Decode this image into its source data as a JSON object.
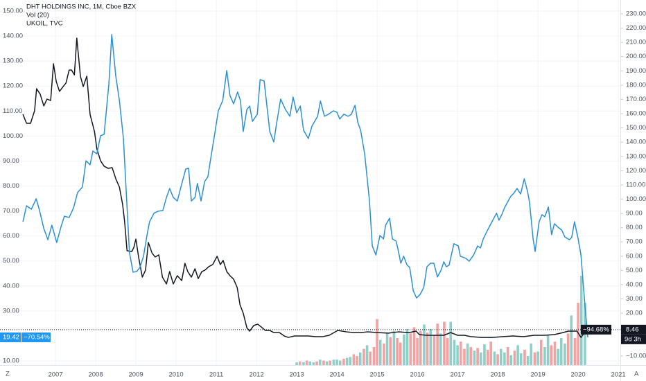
{
  "chart_data": {
    "type": "line",
    "xlim": [
      2005.62,
      2021.05
    ],
    "xticks": [
      2007,
      2008,
      2009,
      2010,
      2011,
      2012,
      2013,
      2014,
      2015,
      2016,
      2017,
      2018,
      2019,
      2020,
      2021
    ],
    "ylim": [
      8.33,
      154.44
    ],
    "yticks": [
      {
        "value": 150,
        "label": "150.00"
      },
      {
        "value": 140,
        "label": "140.00"
      },
      {
        "value": 130,
        "label": "130.00"
      },
      {
        "value": 120,
        "label": "120.00"
      },
      {
        "value": 110,
        "label": "110.00"
      },
      {
        "value": 100,
        "label": "100.00"
      },
      {
        "value": 90,
        "label": "90.00"
      },
      {
        "value": 80,
        "label": "80.00"
      },
      {
        "value": 70,
        "label": "70.00"
      },
      {
        "value": 60,
        "label": "60.00"
      },
      {
        "value": 50,
        "label": "50.00"
      },
      {
        "value": 40,
        "label": "40.00"
      },
      {
        "value": 30,
        "label": "30.00"
      },
      {
        "value": 10,
        "label": "10.00"
      }
    ],
    "y2lim": [
      -16.4,
      239.72
    ],
    "y2ticks": [
      {
        "value": 230,
        "label": "230.00"
      },
      {
        "value": 220,
        "label": "220.00"
      },
      {
        "value": 210,
        "label": "210.00"
      },
      {
        "value": 200,
        "label": "200.00"
      },
      {
        "value": 190,
        "label": "190.00"
      },
      {
        "value": 180,
        "label": "180.00"
      },
      {
        "value": 170,
        "label": "170.00"
      },
      {
        "value": 160,
        "label": "160.00"
      },
      {
        "value": 150,
        "label": "150.00"
      },
      {
        "value": 140,
        "label": "140.00"
      },
      {
        "value": 130,
        "label": "130.00"
      },
      {
        "value": 120,
        "label": "120.00"
      },
      {
        "value": 110,
        "label": "110.00"
      },
      {
        "value": 100,
        "label": "100.00"
      },
      {
        "value": 90,
        "label": "90.00"
      },
      {
        "value": 80,
        "label": "80.00"
      },
      {
        "value": 70,
        "label": "70.00"
      },
      {
        "value": 60,
        "label": "60.00"
      },
      {
        "value": 50,
        "label": "50.00"
      },
      {
        "value": 40,
        "label": "40.00"
      },
      {
        "value": 30,
        "label": "30.00"
      },
      {
        "value": 20,
        "label": "20.00"
      },
      {
        "value": -10,
        "label": "−10.00"
      }
    ],
    "grid": true,
    "series": [
      {
        "name": "DHT HOLDINGS INC, 1M, Cboe BZX",
        "color": "#131722",
        "axis": "y2",
        "x": [
          2006.19,
          2006.28,
          2006.38,
          2006.48,
          2006.53,
          2006.62,
          2006.71,
          2006.79,
          2006.88,
          2006.95,
          2007.02,
          2007.1,
          2007.19,
          2007.26,
          2007.34,
          2007.4,
          2007.47,
          2007.53,
          2007.62,
          2007.69,
          2007.78,
          2007.86,
          2007.97,
          2008.03,
          2008.12,
          2008.21,
          2008.31,
          2008.41,
          2008.5,
          2008.59,
          2008.67,
          2008.72,
          2008.78,
          2008.9,
          2008.95,
          2009.0,
          2009.07,
          2009.16,
          2009.24,
          2009.31,
          2009.4,
          2009.48,
          2009.57,
          2009.66,
          2009.76,
          2009.84,
          2009.93,
          2010.03,
          2010.14,
          2010.22,
          2010.29,
          2010.38,
          2010.47,
          2010.55,
          2010.64,
          2010.72,
          2010.81,
          2010.91,
          2011.02,
          2011.1,
          2011.17,
          2011.26,
          2011.34,
          2011.43,
          2011.52,
          2011.59,
          2011.67,
          2011.76,
          2011.83,
          2011.93,
          2012.03,
          2012.12,
          2012.22,
          2012.33,
          2012.43,
          2012.57,
          2012.69,
          2012.79,
          2012.95,
          2013.12,
          2013.29,
          2013.47,
          2013.64,
          2013.81,
          2014.02,
          2014.24,
          2014.41,
          2014.59,
          2014.76,
          2015.02,
          2015.28,
          2015.53,
          2015.79,
          2015.97,
          2016.05,
          2016.22,
          2016.48,
          2016.66,
          2016.83,
          2017.0,
          2017.17,
          2017.34,
          2017.6,
          2017.86,
          2018.12,
          2018.38,
          2018.64,
          2018.9,
          2019.16,
          2019.41,
          2019.62,
          2019.76,
          2019.86,
          2019.97,
          2020.07,
          2020.14,
          2020.24
        ],
        "values": [
          159.5,
          153.2,
          153.2,
          162.0,
          177.5,
          173.6,
          165.4,
          170.2,
          169.2,
          195.0,
          182.4,
          175.6,
          179.0,
          181.4,
          190.6,
          190.6,
          187.2,
          213.0,
          186.3,
          179.0,
          186.3,
          159.5,
          147.4,
          135.2,
          127.0,
          123.1,
          121.6,
          122.1,
          114.3,
          108.5,
          96.3,
          84.2,
          63.8,
          63.3,
          66.2,
          72.0,
          58.9,
          45.3,
          50.2,
          69.6,
          62.3,
          59.4,
          60.9,
          45.3,
          40.5,
          49.2,
          40.5,
          46.3,
          42.9,
          55.0,
          49.2,
          45.3,
          51.2,
          44.3,
          49.2,
          50.2,
          52.6,
          54.1,
          59.9,
          54.1,
          57.0,
          49.2,
          46.3,
          43.9,
          38.0,
          25.9,
          20.0,
          9.8,
          7.4,
          11.3,
          12.3,
          10.3,
          7.9,
          7.9,
          6.4,
          6.4,
          4.0,
          3.0,
          4.0,
          4.0,
          4.0,
          3.5,
          3.5,
          4.5,
          7.9,
          6.9,
          6.4,
          6.4,
          6.9,
          6.4,
          6.0,
          6.9,
          6.4,
          7.4,
          5.0,
          4.5,
          4.5,
          4.5,
          6.4,
          4.5,
          4.5,
          3.5,
          3.0,
          3.0,
          3.5,
          4.0,
          3.5,
          4.5,
          4.5,
          5.0,
          6.4,
          7.4,
          7.4,
          7.4,
          3.0,
          5.5,
          8.46
        ]
      },
      {
        "name": "UKOIL, TVC",
        "color": "#2a8fd6",
        "axis": "y",
        "x": [
          2006.19,
          2006.28,
          2006.4,
          2006.52,
          2006.6,
          2006.71,
          2006.81,
          2006.91,
          2007.03,
          2007.14,
          2007.22,
          2007.34,
          2007.45,
          2007.55,
          2007.67,
          2007.76,
          2007.86,
          2007.93,
          2008.03,
          2008.12,
          2008.21,
          2008.33,
          2008.4,
          2008.5,
          2008.59,
          2008.69,
          2008.79,
          2008.84,
          2008.93,
          2009.02,
          2009.1,
          2009.19,
          2009.28,
          2009.34,
          2009.45,
          2009.55,
          2009.67,
          2009.76,
          2009.84,
          2009.93,
          2010.03,
          2010.12,
          2010.24,
          2010.31,
          2010.38,
          2010.47,
          2010.53,
          2010.62,
          2010.71,
          2010.79,
          2010.88,
          2010.97,
          2011.05,
          2011.16,
          2011.26,
          2011.34,
          2011.43,
          2011.53,
          2011.6,
          2011.67,
          2011.76,
          2011.83,
          2011.9,
          2012.02,
          2012.09,
          2012.19,
          2012.33,
          2012.43,
          2012.5,
          2012.6,
          2012.72,
          2012.83,
          2012.91,
          2013.0,
          2013.09,
          2013.17,
          2013.29,
          2013.38,
          2013.52,
          2013.59,
          2013.69,
          2013.79,
          2013.91,
          2014.0,
          2014.07,
          2014.17,
          2014.28,
          2014.36,
          2014.45,
          2014.52,
          2014.59,
          2014.69,
          2014.81,
          2014.88,
          2014.97,
          2015.07,
          2015.16,
          2015.21,
          2015.31,
          2015.38,
          2015.47,
          2015.52,
          2015.59,
          2015.66,
          2015.74,
          2015.81,
          2015.9,
          2015.98,
          2016.07,
          2016.16,
          2016.24,
          2016.33,
          2016.41,
          2016.5,
          2016.59,
          2016.66,
          2016.72,
          2016.79,
          2016.91,
          2017.02,
          2017.07,
          2017.21,
          2017.29,
          2017.4,
          2017.5,
          2017.57,
          2017.64,
          2017.74,
          2017.84,
          2017.97,
          2018.03,
          2018.1,
          2018.17,
          2018.26,
          2018.33,
          2018.4,
          2018.48,
          2018.57,
          2018.66,
          2018.74,
          2018.79,
          2018.88,
          2018.93,
          2019.03,
          2019.1,
          2019.17,
          2019.26,
          2019.34,
          2019.41,
          2019.5,
          2019.59,
          2019.67,
          2019.78,
          2019.84,
          2019.91,
          2020.0,
          2020.07,
          2020.14,
          2020.19,
          2020.24
        ],
        "values": [
          65.7,
          72.1,
          70.7,
          74.9,
          70.4,
          63.0,
          58.5,
          64.3,
          57.4,
          63.8,
          67.9,
          67.4,
          71.3,
          77.4,
          79.6,
          90.1,
          88.5,
          94.0,
          92.9,
          100.1,
          100.7,
          121.2,
          140.6,
          123.9,
          114.2,
          99.0,
          68.5,
          53.3,
          45.5,
          45.8,
          47.4,
          51.9,
          60.7,
          65.7,
          69.1,
          69.9,
          70.2,
          75.4,
          79.0,
          75.4,
          74.0,
          79.6,
          86.8,
          87.1,
          74.0,
          75.4,
          81.0,
          74.0,
          81.8,
          83.7,
          92.9,
          101.8,
          110.1,
          114.2,
          126.2,
          116.2,
          112.9,
          117.6,
          114.2,
          101.8,
          110.6,
          112.0,
          105.9,
          108.7,
          122.6,
          122.0,
          101.8,
          97.6,
          105.1,
          114.8,
          110.6,
          107.9,
          115.6,
          109.3,
          112.0,
          102.3,
          99.0,
          104.0,
          107.9,
          114.0,
          107.9,
          108.7,
          110.1,
          109.5,
          106.8,
          108.7,
          107.9,
          108.7,
          112.3,
          105.4,
          102.3,
          92.9,
          74.0,
          56.0,
          52.4,
          60.2,
          58.8,
          64.3,
          67.1,
          58.8,
          58.0,
          54.6,
          49.1,
          51.9,
          48.5,
          47.4,
          38.0,
          35.2,
          36.6,
          39.4,
          47.7,
          49.1,
          49.1,
          43.6,
          46.3,
          49.7,
          47.7,
          48.3,
          56.9,
          56.0,
          51.9,
          51.0,
          49.9,
          52.4,
          56.0,
          55.2,
          58.8,
          62.1,
          65.2,
          69.1,
          66.3,
          68.5,
          71.3,
          74.0,
          76.0,
          77.1,
          79.0,
          76.8,
          82.9,
          77.9,
          73.5,
          58.8,
          53.8,
          65.7,
          68.5,
          67.7,
          71.6,
          60.5,
          64.9,
          63.5,
          62.4,
          59.6,
          58.5,
          59.4,
          65.7,
          58.8,
          52.4,
          38.0,
          28.3,
          19.42
        ]
      }
    ],
    "volume": {
      "type": "bar",
      "name": "Vol (20)",
      "vlim": [
        0,
        405
      ],
      "up_color": "#8ed0c8",
      "down_color": "#f4a1a1",
      "x": [
        2013.0,
        2013.08,
        2013.17,
        2013.25,
        2013.33,
        2013.42,
        2013.5,
        2013.58,
        2013.67,
        2013.75,
        2013.83,
        2013.92,
        2014.0,
        2014.08,
        2014.17,
        2014.25,
        2014.33,
        2014.42,
        2014.5,
        2014.58,
        2014.67,
        2014.75,
        2014.83,
        2014.92,
        2015.0,
        2015.08,
        2015.17,
        2015.25,
        2015.33,
        2015.42,
        2015.5,
        2015.58,
        2015.67,
        2015.75,
        2015.83,
        2015.92,
        2016.0,
        2016.08,
        2016.17,
        2016.25,
        2016.33,
        2016.42,
        2016.5,
        2016.58,
        2016.67,
        2016.75,
        2016.83,
        2016.92,
        2017.0,
        2017.08,
        2017.17,
        2017.25,
        2017.33,
        2017.42,
        2017.5,
        2017.58,
        2017.67,
        2017.75,
        2017.83,
        2017.92,
        2018.0,
        2018.08,
        2018.17,
        2018.25,
        2018.33,
        2018.42,
        2018.5,
        2018.58,
        2018.67,
        2018.75,
        2018.83,
        2018.92,
        2019.0,
        2019.08,
        2019.17,
        2019.25,
        2019.33,
        2019.42,
        2019.5,
        2019.58,
        2019.67,
        2019.75,
        2019.83,
        2019.92,
        2020.0,
        2020.08,
        2020.17
      ],
      "values": [
        3,
        4,
        3,
        5,
        4,
        3,
        4,
        6,
        5,
        4,
        5,
        6,
        6,
        5,
        7,
        8,
        9,
        12,
        10,
        14,
        18,
        22,
        15,
        20,
        51,
        28,
        24,
        36,
        31,
        38,
        30,
        25,
        34,
        40,
        35,
        42,
        30,
        38,
        45,
        36,
        40,
        33,
        46,
        35,
        48,
        30,
        48,
        28,
        22,
        26,
        18,
        24,
        20,
        16,
        19,
        14,
        23,
        17,
        26,
        15,
        12,
        18,
        14,
        20,
        11,
        16,
        22,
        13,
        17,
        10,
        24,
        14,
        15,
        28,
        20,
        33,
        22,
        26,
        18,
        30,
        24,
        35,
        55,
        30,
        69,
        99,
        69
      ],
      "up": [
        true,
        false,
        true,
        false,
        true,
        true,
        false,
        true,
        false,
        true,
        false,
        true,
        true,
        true,
        false,
        true,
        true,
        false,
        false,
        true,
        false,
        true,
        false,
        false,
        false,
        true,
        false,
        true,
        false,
        true,
        false,
        false,
        true,
        true,
        false,
        false,
        false,
        false,
        true,
        false,
        true,
        false,
        false,
        true,
        false,
        false,
        true,
        true,
        true,
        false,
        false,
        true,
        false,
        true,
        false,
        true,
        true,
        false,
        false,
        true,
        false,
        true,
        true,
        false,
        true,
        false,
        true,
        true,
        false,
        true,
        true,
        false,
        true,
        false,
        true,
        true,
        false,
        false,
        true,
        true,
        true,
        false,
        true,
        false,
        false,
        true,
        true
      ]
    },
    "markers": {
      "left_last": {
        "value": 19.42,
        "label": "19.42"
      },
      "left_change": {
        "value": -70.54,
        "label": "−70.54%"
      },
      "right_change": {
        "value": -94.68,
        "label": "−94.68%"
      },
      "right_last": {
        "value": 8.46,
        "label": "8.46"
      },
      "countdown": "9d 3h"
    },
    "buttons": [
      "Z",
      "A"
    ]
  }
}
